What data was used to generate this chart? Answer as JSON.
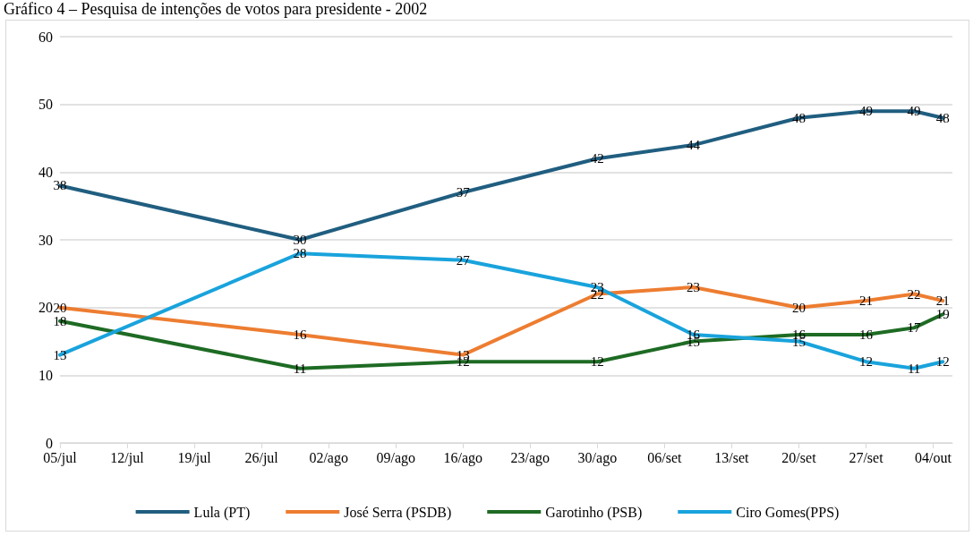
{
  "chart_data": {
    "type": "line",
    "title": "Gráfico 4 – Pesquisa de intenções de votos para presidente - 2002",
    "x": [
      "--07-05",
      "--07-30",
      "--08-16",
      "--08-30",
      "--09-09",
      "--09-20",
      "--09-27",
      "--10-02",
      "--10-05"
    ],
    "series": [
      {
        "name": "Lula (PT)",
        "color": "#205e80",
        "values": [
          38,
          30,
          37,
          42,
          44,
          48,
          49,
          49,
          48
        ]
      },
      {
        "name": "José Serra (PSDB)",
        "color": "#ed7d31",
        "values": [
          20,
          16,
          13,
          22,
          23,
          20,
          21,
          22,
          21
        ]
      },
      {
        "name": "Garotinho (PSB)",
        "color": "#1e6b24",
        "values": [
          18,
          11,
          12,
          12,
          15,
          16,
          16,
          17,
          19
        ]
      },
      {
        "name": "Ciro Gomes(PPS)",
        "color": "#19a3dc",
        "values": [
          13,
          28,
          27,
          23,
          16,
          15,
          12,
          11,
          12
        ]
      }
    ],
    "xlim": [
      "--07-05",
      "--10-06"
    ],
    "xticks": [
      {
        "value": "--07-05",
        "label": "05/jul"
      },
      {
        "value": "--07-12",
        "label": "12/jul"
      },
      {
        "value": "--07-19",
        "label": "19/jul"
      },
      {
        "value": "--07-26",
        "label": "26/jul"
      },
      {
        "value": "--08-02",
        "label": "02/ago"
      },
      {
        "value": "--08-09",
        "label": "09/ago"
      },
      {
        "value": "--08-16",
        "label": "16/ago"
      },
      {
        "value": "--08-23",
        "label": "23/ago"
      },
      {
        "value": "--08-30",
        "label": "30/ago"
      },
      {
        "value": "--09-06",
        "label": "06/set"
      },
      {
        "value": "--09-13",
        "label": "13/set"
      },
      {
        "value": "--09-20",
        "label": "20/set"
      },
      {
        "value": "--09-27",
        "label": "27/set"
      },
      {
        "value": "--10-04",
        "label": "04/out"
      }
    ],
    "ylim": [
      0,
      60
    ],
    "yticks": [
      0,
      10,
      20,
      30,
      40,
      50,
      60
    ],
    "grid": "y",
    "legend": "bottom",
    "marker": "none",
    "line_style": "solid",
    "data_labels": true
  }
}
